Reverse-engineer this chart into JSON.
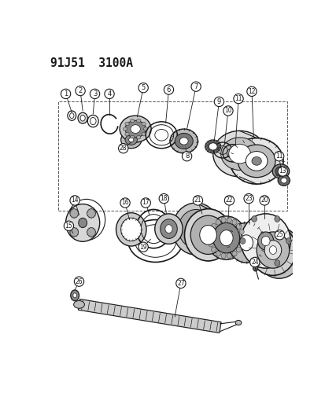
{
  "title": "91J51  3100A",
  "bg_color": "#ffffff",
  "line_color": "#1a1a1a",
  "label_color": "#1a1a1a",
  "title_fontsize": 10.5,
  "fig_width": 4.14,
  "fig_height": 5.33,
  "dpi": 100
}
